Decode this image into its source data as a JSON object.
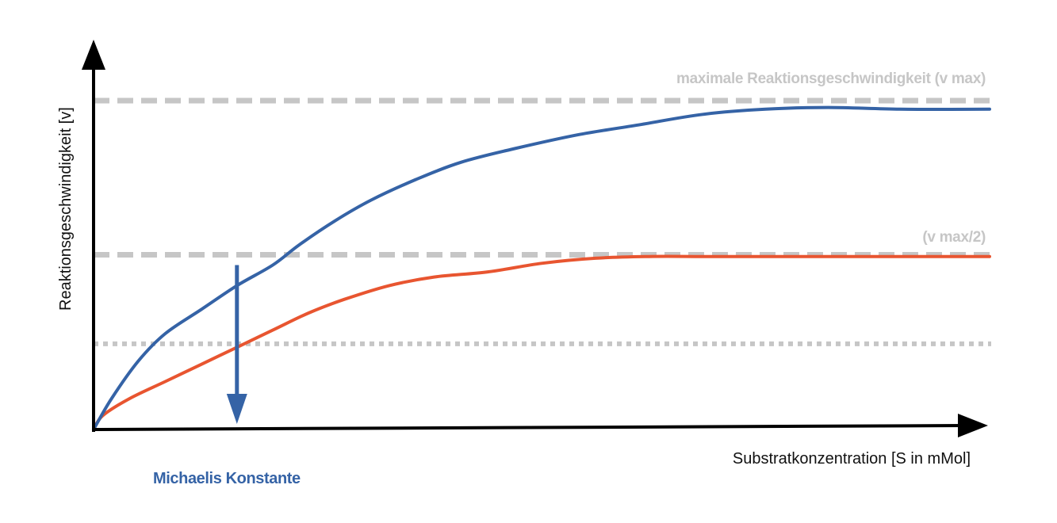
{
  "chart_data": {
    "type": "line",
    "title": "",
    "xlabel": "Substratkonzentration [S in mMol]",
    "ylabel": "Reaktionsgeschwindigkeit [v]",
    "xlim": [
      0,
      100
    ],
    "ylim": [
      0,
      100
    ],
    "grid": false,
    "series": [
      {
        "color": "#3563a6",
        "x": [
          0,
          2,
          5,
          8,
          12,
          16,
          20,
          23,
          27,
          31,
          36,
          41,
          47,
          54,
          61,
          68,
          75,
          82,
          90,
          100
        ],
        "y": [
          0,
          9,
          20,
          28,
          35,
          42,
          48,
          54,
          61,
          67,
          73,
          78,
          82,
          86,
          89,
          92,
          93.5,
          94,
          93.5,
          93.5
        ]
      },
      {
        "color": "#e85530",
        "x": [
          0,
          1,
          4,
          8,
          12,
          16,
          20,
          24,
          28,
          33,
          38,
          44,
          50,
          56,
          62,
          68,
          75,
          85,
          100
        ],
        "y": [
          0,
          4,
          9,
          14,
          19,
          24,
          29,
          34,
          38,
          42,
          44.5,
          46,
          48.5,
          50,
          50.5,
          50.5,
          50.5,
          50.5,
          50.5
        ]
      }
    ],
    "reference_lines": [
      {
        "label": "maximale Reaktionsgeschwindigkeit (v max)",
        "y": 96,
        "style": "dashed",
        "color": "#c6c6c6"
      },
      {
        "label": "(v max/2)",
        "y": 51,
        "style": "dashed",
        "color": "#c6c6c6"
      },
      {
        "label": "",
        "y": 25,
        "style": "dotted",
        "color": "#c6c6c6"
      }
    ],
    "annotations": [
      {
        "label": "Michaelis Konstante",
        "x": 16,
        "y_from": 48,
        "y_to": 2,
        "color": "#3563a6"
      }
    ]
  }
}
